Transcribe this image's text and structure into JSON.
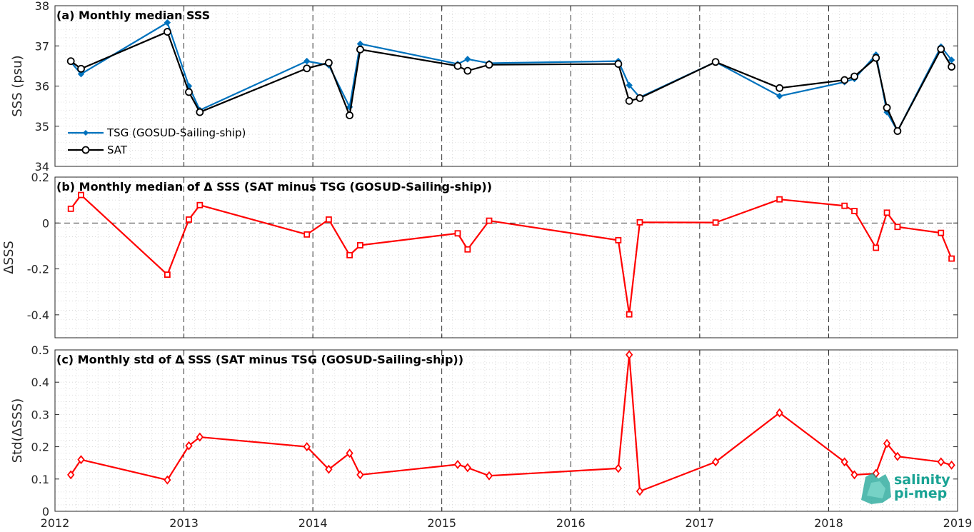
{
  "chart_data": [
    {
      "type": "line",
      "title": "(a) Monthly median SSS",
      "xlabel": "",
      "ylabel": "SSS (psu)",
      "xlim": [
        "2012-01-01",
        "2019-01-01"
      ],
      "ylim": [
        34,
        38
      ],
      "yticks": [
        34,
        35,
        36,
        37,
        38
      ],
      "grid": true,
      "legend_position": "bottom-left",
      "series": [
        {
          "name": "TSG (GOSUD-Sailing-ship)",
          "color": "#0072BD",
          "marker": "dot",
          "x": [
            "2012-02-15",
            "2012-03-15",
            "2012-11-15",
            "2013-01-15",
            "2013-02-15",
            "2013-12-15",
            "2014-02-15",
            "2014-04-15",
            "2014-05-15",
            "2015-02-15",
            "2015-03-15",
            "2015-05-15",
            "2016-05-15",
            "2016-06-15",
            "2016-07-15",
            "2017-02-15",
            "2017-08-15",
            "2018-02-15",
            "2018-03-15",
            "2018-05-15",
            "2018-06-15",
            "2018-07-15",
            "2018-11-15",
            "2018-12-15"
          ],
          "values": [
            36.6,
            36.3,
            37.58,
            36.0,
            35.4,
            36.62,
            36.52,
            35.48,
            37.05,
            36.55,
            36.67,
            36.57,
            36.62,
            36.02,
            35.72,
            36.6,
            35.75,
            36.1,
            36.18,
            36.78,
            35.35,
            34.88,
            36.98,
            36.65
          ]
        },
        {
          "name": "SAT",
          "color": "#000000",
          "marker": "circle",
          "x": [
            "2012-02-15",
            "2012-03-15",
            "2012-11-15",
            "2013-01-15",
            "2013-02-15",
            "2013-12-15",
            "2014-02-15",
            "2014-04-15",
            "2014-05-15",
            "2015-02-15",
            "2015-03-15",
            "2015-05-15",
            "2016-05-15",
            "2016-06-15",
            "2016-07-15",
            "2017-02-15",
            "2017-08-15",
            "2018-02-15",
            "2018-03-15",
            "2018-05-15",
            "2018-06-15",
            "2018-07-15",
            "2018-11-15",
            "2018-12-15"
          ],
          "values": [
            36.62,
            36.43,
            37.35,
            35.85,
            35.35,
            36.44,
            36.58,
            35.27,
            36.91,
            36.5,
            36.38,
            36.53,
            36.55,
            35.63,
            35.7,
            36.6,
            35.95,
            36.15,
            36.24,
            36.7,
            35.46,
            34.88,
            36.92,
            36.48
          ]
        }
      ]
    },
    {
      "type": "line",
      "title": "(b) Monthly median of Δ SSS (SAT minus TSG (GOSUD-Sailing-ship))",
      "xlabel": "",
      "ylabel": "ΔSSS",
      "xlim": [
        "2012-01-01",
        "2019-01-01"
      ],
      "ylim": [
        -0.5,
        0.2
      ],
      "yticks": [
        -0.4,
        -0.2,
        0,
        0.2
      ],
      "ytick_labels": [
        "-0.4",
        "-0.2",
        "0",
        "0.2"
      ],
      "grid": true,
      "zero_line": true,
      "series": [
        {
          "color": "#FF0000",
          "marker": "square",
          "x": [
            "2012-02-15",
            "2012-03-15",
            "2012-11-15",
            "2013-01-15",
            "2013-02-15",
            "2013-12-15",
            "2014-02-15",
            "2014-04-15",
            "2014-05-15",
            "2015-02-15",
            "2015-03-15",
            "2015-05-15",
            "2016-05-15",
            "2016-06-15",
            "2016-07-15",
            "2017-02-15",
            "2017-08-15",
            "2018-02-15",
            "2018-03-15",
            "2018-05-15",
            "2018-06-15",
            "2018-07-15",
            "2018-11-15",
            "2018-12-15"
          ],
          "values": [
            0.062,
            0.122,
            -0.225,
            0.015,
            0.078,
            -0.05,
            0.015,
            -0.14,
            -0.097,
            -0.045,
            -0.115,
            0.01,
            -0.075,
            -0.398,
            0.003,
            0.002,
            0.103,
            0.075,
            0.052,
            -0.108,
            0.045,
            -0.017,
            -0.043,
            -0.155
          ]
        }
      ]
    },
    {
      "type": "line",
      "title": "(c) Monthly std of Δ SSS (SAT minus TSG (GOSUD-Sailing-ship))",
      "xlabel": "",
      "ylabel": "Std(ΔSSS)",
      "xlim": [
        "2012-01-01",
        "2019-01-01"
      ],
      "xticks": [
        "2012",
        "2013",
        "2014",
        "2015",
        "2016",
        "2017",
        "2018",
        "2019"
      ],
      "ylim": [
        0,
        0.5
      ],
      "yticks": [
        0,
        0.1,
        0.2,
        0.3,
        0.4,
        0.5
      ],
      "ytick_labels": [
        "0",
        "0.1",
        "0.2",
        "0.3",
        "0.4",
        "0.5"
      ],
      "grid": true,
      "series": [
        {
          "color": "#FF0000",
          "marker": "diamond",
          "x": [
            "2012-02-15",
            "2012-03-15",
            "2012-11-15",
            "2013-01-15",
            "2013-02-15",
            "2013-12-15",
            "2014-02-15",
            "2014-04-15",
            "2014-05-15",
            "2015-02-15",
            "2015-03-15",
            "2015-05-15",
            "2016-05-15",
            "2016-06-15",
            "2016-07-15",
            "2017-02-15",
            "2017-08-15",
            "2018-02-15",
            "2018-03-15",
            "2018-05-15",
            "2018-06-15",
            "2018-07-15",
            "2018-11-15",
            "2018-12-15"
          ],
          "values": [
            0.113,
            0.16,
            0.097,
            0.203,
            0.23,
            0.2,
            0.13,
            0.18,
            0.113,
            0.145,
            0.135,
            0.11,
            0.133,
            0.485,
            0.062,
            0.153,
            0.305,
            0.153,
            0.113,
            0.117,
            0.21,
            0.17,
            0.153,
            0.143
          ]
        }
      ]
    }
  ],
  "logo": {
    "line1": "salinity",
    "line2": "pi-mep",
    "color": "#1aa394"
  }
}
